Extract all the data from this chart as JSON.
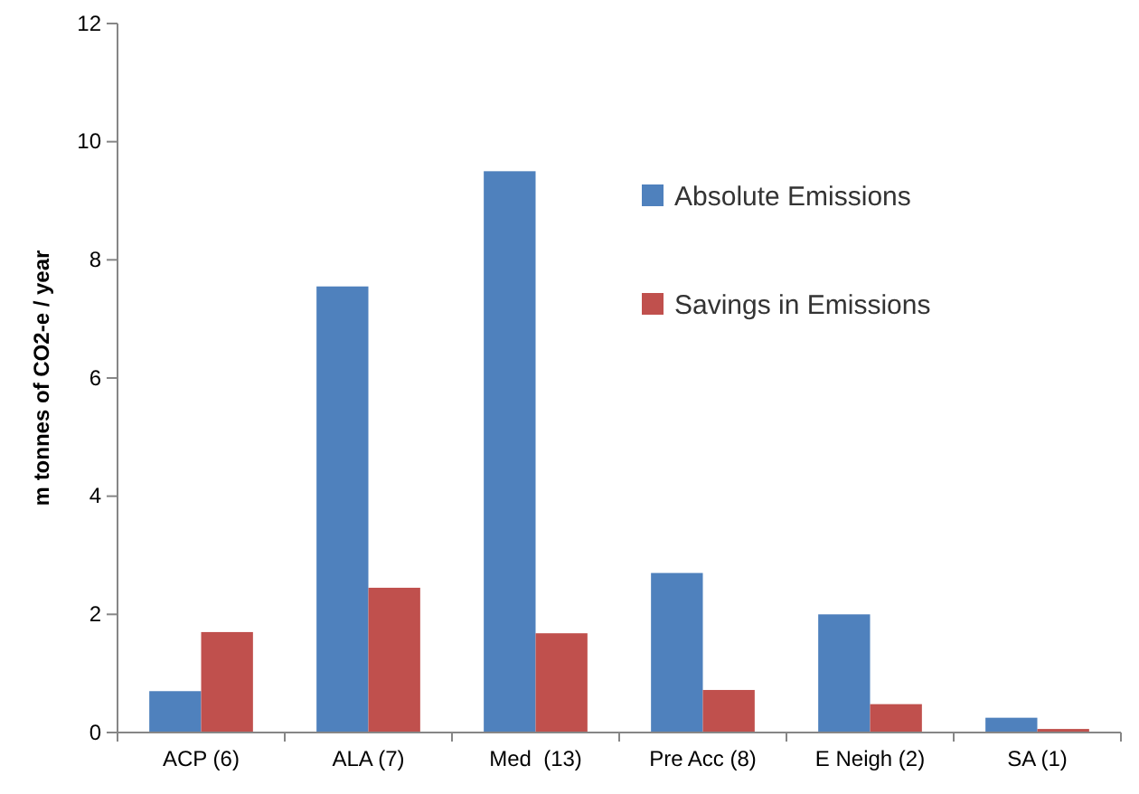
{
  "chart_data": {
    "type": "bar",
    "ylabel": "m tonnes of CO2-e / year",
    "categories": [
      "ACP (6)",
      "ALA (7)",
      "Med  (13)",
      "Pre Acc (8)",
      "E Neigh (2)",
      "SA (1)"
    ],
    "series": [
      {
        "name": "Absolute Emissions",
        "color": "#4f81bd",
        "values": [
          0.7,
          7.55,
          9.5,
          2.7,
          2.0,
          0.25
        ]
      },
      {
        "name": "Savings in Emissions",
        "color": "#c0504d",
        "values": [
          1.7,
          2.45,
          1.68,
          0.72,
          0.48,
          0.06
        ]
      }
    ],
    "ylim": [
      0,
      12
    ],
    "yticks": [
      0,
      2,
      4,
      6,
      8,
      10,
      12
    ],
    "grid": false,
    "legend": "top right"
  }
}
